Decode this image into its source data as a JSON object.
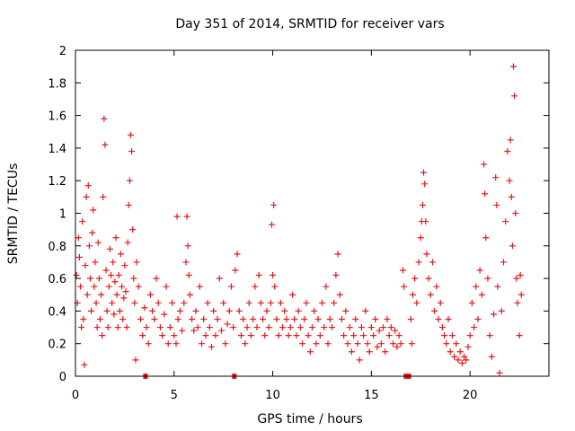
{
  "chart_data": {
    "type": "scatter",
    "title": "Day 351 of 2014, SRMTID for receiver vars",
    "xlabel": "GPS time / hours",
    "ylabel": "SRMTID / TECUs",
    "xlim": [
      0,
      24
    ],
    "ylim": [
      0,
      2
    ],
    "xticks": [
      "0",
      "5",
      "10",
      "15",
      "20"
    ],
    "yticks": [
      "0",
      "0.2",
      "0.4",
      "0.6",
      "0.8",
      "1",
      "1.2",
      "1.4",
      "1.6",
      "1.8",
      "2"
    ],
    "xtick_values": [
      0,
      5,
      10,
      15,
      20
    ],
    "ytick_values": [
      0,
      0.2,
      0.4,
      0.6,
      0.8,
      1,
      1.2,
      1.4,
      1.6,
      1.8,
      2
    ],
    "grid": false,
    "marker": "+",
    "color": "#e31a1c",
    "series": [
      {
        "name": "SRMTID",
        "points": [
          [
            0.05,
            0.62
          ],
          [
            0.1,
            0.45
          ],
          [
            0.15,
            0.85
          ],
          [
            0.2,
            0.73
          ],
          [
            0.25,
            0.55
          ],
          [
            0.3,
            0.3
          ],
          [
            0.35,
            0.95
          ],
          [
            0.4,
            0.35
          ],
          [
            0.45,
            0.07
          ],
          [
            0.5,
            0.68
          ],
          [
            0.55,
            1.1
          ],
          [
            0.6,
            0.5
          ],
          [
            0.65,
            1.17
          ],
          [
            0.7,
            0.8
          ],
          [
            0.75,
            0.6
          ],
          [
            0.8,
            0.4
          ],
          [
            0.85,
            0.88
          ],
          [
            0.9,
            1.02
          ],
          [
            0.95,
            0.55
          ],
          [
            1.0,
            0.7
          ],
          [
            1.05,
            0.45
          ],
          [
            1.1,
            0.3
          ],
          [
            1.15,
            0.82
          ],
          [
            1.2,
            0.6
          ],
          [
            1.25,
            0.35
          ],
          [
            1.3,
            0.5
          ],
          [
            1.35,
            0.25
          ],
          [
            1.4,
            1.1
          ],
          [
            1.45,
            1.58
          ],
          [
            1.5,
            1.42
          ],
          [
            1.55,
            0.65
          ],
          [
            1.6,
            0.4
          ],
          [
            1.65,
            0.3
          ],
          [
            1.7,
            0.55
          ],
          [
            1.75,
            0.78
          ],
          [
            1.8,
            0.62
          ],
          [
            1.85,
            0.45
          ],
          [
            1.9,
            0.7
          ],
          [
            1.95,
            0.38
          ],
          [
            2.0,
            0.58
          ],
          [
            2.05,
            0.85
          ],
          [
            2.1,
            0.5
          ],
          [
            2.15,
            0.3
          ],
          [
            2.2,
            0.62
          ],
          [
            2.25,
            0.4
          ],
          [
            2.3,
            0.75
          ],
          [
            2.35,
            0.55
          ],
          [
            2.4,
            0.35
          ],
          [
            2.45,
            0.48
          ],
          [
            2.5,
            0.68
          ],
          [
            2.55,
            0.52
          ],
          [
            2.6,
            0.3
          ],
          [
            2.65,
            0.82
          ],
          [
            2.7,
            1.05
          ],
          [
            2.75,
            1.2
          ],
          [
            2.8,
            1.48
          ],
          [
            2.85,
            1.38
          ],
          [
            2.9,
            0.9
          ],
          [
            2.95,
            0.6
          ],
          [
            3.0,
            0.45
          ],
          [
            3.05,
            0.1
          ],
          [
            3.1,
            0.7
          ],
          [
            3.2,
            0.55
          ],
          [
            3.3,
            0.35
          ],
          [
            3.4,
            0.25
          ],
          [
            3.5,
            0.42
          ],
          [
            3.6,
            0.3
          ],
          [
            3.7,
            0.2
          ],
          [
            3.8,
            0.5
          ],
          [
            3.9,
            0.4
          ],
          [
            4.0,
            0.35
          ],
          [
            4.1,
            0.6
          ],
          [
            4.2,
            0.45
          ],
          [
            4.3,
            0.3
          ],
          [
            4.4,
            0.25
          ],
          [
            4.5,
            0.38
          ],
          [
            4.6,
            0.55
          ],
          [
            4.7,
            0.2
          ],
          [
            4.8,
            0.3
          ],
          [
            4.9,
            0.45
          ],
          [
            5.0,
            0.25
          ],
          [
            5.1,
            0.2
          ],
          [
            5.15,
            0.98
          ],
          [
            5.2,
            0.35
          ],
          [
            5.3,
            0.4
          ],
          [
            5.4,
            0.28
          ],
          [
            5.5,
            0.45
          ],
          [
            5.6,
            0.7
          ],
          [
            5.65,
            0.98
          ],
          [
            5.7,
            0.8
          ],
          [
            5.75,
            0.62
          ],
          [
            5.8,
            0.5
          ],
          [
            5.9,
            0.35
          ],
          [
            6.0,
            0.28
          ],
          [
            6.1,
            0.4
          ],
          [
            6.2,
            0.3
          ],
          [
            6.3,
            0.55
          ],
          [
            6.4,
            0.2
          ],
          [
            6.5,
            0.35
          ],
          [
            6.6,
            0.25
          ],
          [
            6.7,
            0.45
          ],
          [
            6.8,
            0.3
          ],
          [
            6.9,
            0.18
          ],
          [
            7.0,
            0.4
          ],
          [
            7.1,
            0.25
          ],
          [
            7.2,
            0.35
          ],
          [
            7.3,
            0.6
          ],
          [
            7.4,
            0.28
          ],
          [
            7.5,
            0.45
          ],
          [
            7.6,
            0.2
          ],
          [
            7.7,
            0.32
          ],
          [
            7.8,
            0.4
          ],
          [
            7.9,
            0.55
          ],
          [
            8.0,
            0.3
          ],
          [
            8.1,
            0.65
          ],
          [
            8.2,
            0.75
          ],
          [
            8.3,
            0.4
          ],
          [
            8.4,
            0.25
          ],
          [
            8.5,
            0.35
          ],
          [
            8.6,
            0.2
          ],
          [
            8.7,
            0.3
          ],
          [
            8.8,
            0.45
          ],
          [
            8.9,
            0.25
          ],
          [
            9.0,
            0.35
          ],
          [
            9.1,
            0.55
          ],
          [
            9.2,
            0.3
          ],
          [
            9.3,
            0.62
          ],
          [
            9.4,
            0.45
          ],
          [
            9.5,
            0.35
          ],
          [
            9.6,
            0.25
          ],
          [
            9.7,
            0.4
          ],
          [
            9.8,
            0.3
          ],
          [
            9.9,
            0.45
          ],
          [
            9.95,
            0.93
          ],
          [
            10.0,
            0.62
          ],
          [
            10.05,
            1.05
          ],
          [
            10.1,
            0.55
          ],
          [
            10.2,
            0.35
          ],
          [
            10.3,
            0.25
          ],
          [
            10.4,
            0.45
          ],
          [
            10.5,
            0.3
          ],
          [
            10.6,
            0.4
          ],
          [
            10.7,
            0.35
          ],
          [
            10.8,
            0.25
          ],
          [
            10.9,
            0.3
          ],
          [
            11.0,
            0.5
          ],
          [
            11.1,
            0.35
          ],
          [
            11.2,
            0.25
          ],
          [
            11.3,
            0.4
          ],
          [
            11.4,
            0.3
          ],
          [
            11.5,
            0.2
          ],
          [
            11.6,
            0.35
          ],
          [
            11.7,
            0.45
          ],
          [
            11.8,
            0.25
          ],
          [
            11.9,
            0.15
          ],
          [
            12.0,
            0.3
          ],
          [
            12.1,
            0.4
          ],
          [
            12.2,
            0.2
          ],
          [
            12.3,
            0.35
          ],
          [
            12.4,
            0.25
          ],
          [
            12.5,
            0.45
          ],
          [
            12.6,
            0.3
          ],
          [
            12.7,
            0.55
          ],
          [
            12.8,
            0.2
          ],
          [
            12.9,
            0.35
          ],
          [
            13.0,
            0.3
          ],
          [
            13.1,
            0.45
          ],
          [
            13.2,
            0.62
          ],
          [
            13.3,
            0.75
          ],
          [
            13.4,
            0.5
          ],
          [
            13.5,
            0.35
          ],
          [
            13.6,
            0.25
          ],
          [
            13.7,
            0.4
          ],
          [
            13.8,
            0.2
          ],
          [
            13.9,
            0.3
          ],
          [
            14.0,
            0.15
          ],
          [
            14.1,
            0.25
          ],
          [
            14.2,
            0.35
          ],
          [
            14.3,
            0.2
          ],
          [
            14.4,
            0.1
          ],
          [
            14.5,
            0.3
          ],
          [
            14.6,
            0.25
          ],
          [
            14.7,
            0.4
          ],
          [
            14.8,
            0.2
          ],
          [
            14.9,
            0.15
          ],
          [
            15.0,
            0.3
          ],
          [
            15.1,
            0.25
          ],
          [
            15.2,
            0.35
          ],
          [
            15.3,
            0.18
          ],
          [
            15.4,
            0.28
          ],
          [
            15.5,
            0.2
          ],
          [
            15.6,
            0.3
          ],
          [
            15.7,
            0.15
          ],
          [
            15.8,
            0.35
          ],
          [
            15.9,
            0.25
          ],
          [
            16.0,
            0.3
          ],
          [
            16.1,
            0.2
          ],
          [
            16.2,
            0.28
          ],
          [
            16.3,
            0.18
          ],
          [
            16.4,
            0.25
          ],
          [
            16.5,
            0.2
          ],
          [
            16.6,
            0.65
          ],
          [
            16.65,
            0.55
          ],
          [
            17.0,
            0.35
          ],
          [
            17.05,
            0.2
          ],
          [
            17.1,
            0.5
          ],
          [
            17.2,
            0.6
          ],
          [
            17.3,
            0.45
          ],
          [
            17.4,
            0.7
          ],
          [
            17.5,
            0.85
          ],
          [
            17.55,
            0.95
          ],
          [
            17.6,
            1.05
          ],
          [
            17.65,
            1.25
          ],
          [
            17.7,
            1.18
          ],
          [
            17.75,
            0.95
          ],
          [
            17.8,
            0.75
          ],
          [
            17.9,
            0.6
          ],
          [
            18.0,
            0.5
          ],
          [
            18.1,
            0.7
          ],
          [
            18.2,
            0.4
          ],
          [
            18.3,
            0.55
          ],
          [
            18.4,
            0.35
          ],
          [
            18.5,
            0.45
          ],
          [
            18.6,
            0.3
          ],
          [
            18.7,
            0.25
          ],
          [
            18.8,
            0.2
          ],
          [
            18.9,
            0.35
          ],
          [
            19.0,
            0.15
          ],
          [
            19.1,
            0.25
          ],
          [
            19.2,
            0.12
          ],
          [
            19.3,
            0.2
          ],
          [
            19.4,
            0.1
          ],
          [
            19.5,
            0.15
          ],
          [
            19.6,
            0.08
          ],
          [
            19.7,
            0.12
          ],
          [
            19.8,
            0.1
          ],
          [
            19.9,
            0.18
          ],
          [
            20.0,
            0.25
          ],
          [
            20.1,
            0.45
          ],
          [
            20.2,
            0.3
          ],
          [
            20.3,
            0.55
          ],
          [
            20.4,
            0.35
          ],
          [
            20.5,
            0.65
          ],
          [
            20.6,
            0.5
          ],
          [
            20.7,
            1.3
          ],
          [
            20.75,
            1.12
          ],
          [
            20.8,
            0.85
          ],
          [
            20.9,
            0.6
          ],
          [
            21.0,
            0.25
          ],
          [
            21.1,
            0.12
          ],
          [
            21.2,
            0.38
          ],
          [
            21.3,
            1.22
          ],
          [
            21.35,
            1.05
          ],
          [
            21.4,
            0.55
          ],
          [
            21.5,
            0.02
          ],
          [
            21.6,
            0.4
          ],
          [
            21.7,
            0.7
          ],
          [
            21.8,
            0.95
          ],
          [
            21.9,
            1.38
          ],
          [
            22.0,
            1.2
          ],
          [
            22.05,
            1.45
          ],
          [
            22.1,
            1.1
          ],
          [
            22.15,
            0.8
          ],
          [
            22.2,
            1.9
          ],
          [
            22.25,
            1.72
          ],
          [
            22.3,
            1.0
          ],
          [
            22.35,
            0.6
          ],
          [
            22.4,
            0.45
          ],
          [
            22.5,
            0.25
          ],
          [
            22.55,
            0.62
          ],
          [
            22.6,
            0.5
          ]
        ]
      }
    ],
    "axis_markers_hours": [
      3.55,
      8.05,
      16.75,
      16.9
    ]
  }
}
